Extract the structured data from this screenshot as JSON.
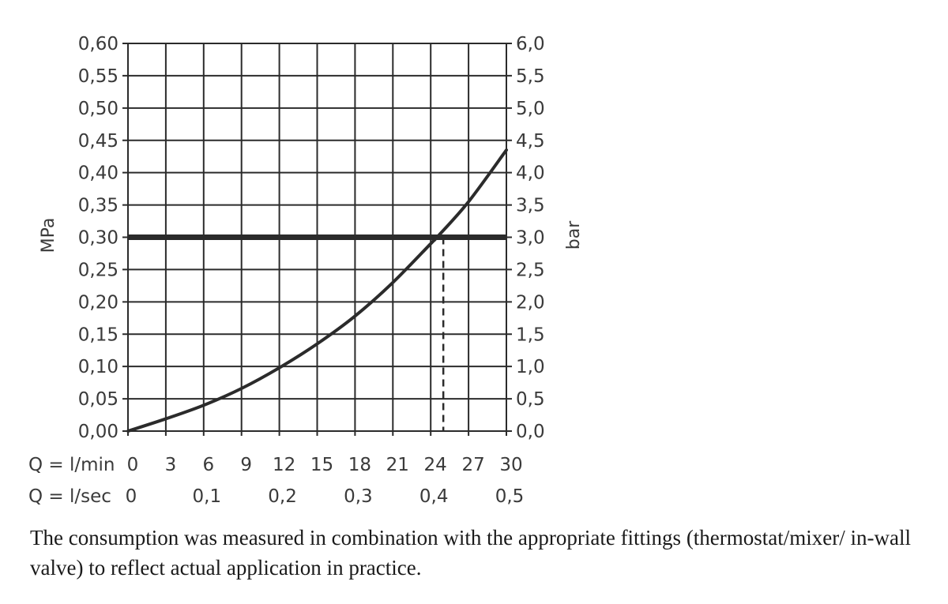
{
  "chart_data": {
    "type": "line",
    "x_unit_label": "Q = l/min",
    "x_ticks": [
      "0",
      "3",
      "6",
      "9",
      "12",
      "15",
      "18",
      "21",
      "24",
      "27",
      "30"
    ],
    "x2_unit_label": "Q = l/sec",
    "x2_ticks": [
      {
        "value": 0,
        "label": "0"
      },
      {
        "value": 6,
        "label": "0,1"
      },
      {
        "value": 12,
        "label": "0,2"
      },
      {
        "value": 18,
        "label": "0,3"
      },
      {
        "value": 24,
        "label": "0,4"
      },
      {
        "value": 30,
        "label": "0,5"
      }
    ],
    "ylabel": "MPa",
    "y_ticks": [
      "0,00",
      "0,05",
      "0,10",
      "0,15",
      "0,20",
      "0,25",
      "0,30",
      "0,35",
      "0,40",
      "0,45",
      "0,50",
      "0,55",
      "0,60"
    ],
    "y2label": "bar",
    "y2_ticks": [
      "0,0",
      "0,5",
      "1,0",
      "1,5",
      "2,0",
      "2,5",
      "3,0",
      "3,5",
      "4,0",
      "4,5",
      "5,0",
      "5,5",
      "6,0"
    ],
    "xlim": [
      0,
      30
    ],
    "ylim": [
      0,
      0.6
    ],
    "grid": true,
    "series": [
      {
        "x": [
          0,
          3,
          6,
          9,
          12,
          15,
          18,
          21,
          24,
          24.5,
          27,
          30
        ],
        "y": [
          0.0,
          0.019,
          0.04,
          0.066,
          0.098,
          0.135,
          0.178,
          0.23,
          0.29,
          0.3,
          0.355,
          0.435
        ]
      }
    ],
    "reference_line": {
      "y": 0.3
    },
    "marker_line": {
      "x": 25.0
    }
  },
  "caption": {
    "text": "The consumption was measured in combination with the appropriate fittings (thermostat/mixer/ in-wall valve) to reflect actual application in practice."
  }
}
